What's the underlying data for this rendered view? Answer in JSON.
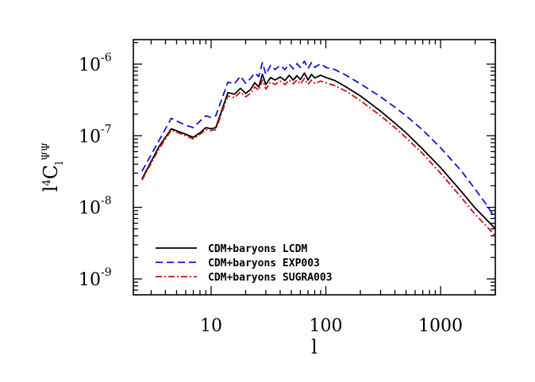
{
  "chart_data": {
    "type": "line",
    "xlabel": "l",
    "ylabel": "l⁴C_l^ΨΨ",
    "xscale": "log",
    "yscale": "log",
    "xlim": [
      2.1,
      3000
    ],
    "ylim": [
      6e-10,
      2.2e-06
    ],
    "x_ticks": [
      {
        "value": 10,
        "label": "10"
      },
      {
        "value": 100,
        "label": "100"
      },
      {
        "value": 1000,
        "label": "1000"
      }
    ],
    "y_ticks": [
      {
        "value": 1e-09,
        "base": "10",
        "exp": "-9"
      },
      {
        "value": 1e-08,
        "base": "10",
        "exp": "-8"
      },
      {
        "value": 1e-07,
        "base": "10",
        "exp": "-7"
      },
      {
        "value": 1e-06,
        "base": "10",
        "exp": "-6"
      }
    ],
    "grid": false,
    "legend_position": "bottom-left",
    "series": [
      {
        "name": "CDM+baryons LCDM",
        "color": "#000000",
        "dash": "solid",
        "points": [
          [
            2.5,
            2.5e-08
          ],
          [
            3.5,
            7e-08
          ],
          [
            4.5,
            1.25e-07
          ],
          [
            6,
            1.05e-07
          ],
          [
            7,
            9.5e-08
          ],
          [
            8,
            1.1e-07
          ],
          [
            9,
            1.3e-07
          ],
          [
            10,
            1.25e-07
          ],
          [
            11,
            1.3e-07
          ],
          [
            14,
            4e-07
          ],
          [
            16,
            3.8e-07
          ],
          [
            18,
            4.6e-07
          ],
          [
            20,
            3.9e-07
          ],
          [
            22,
            4.4e-07
          ],
          [
            24,
            5.5e-07
          ],
          [
            26,
            4.8e-07
          ],
          [
            28,
            7.2e-07
          ],
          [
            30,
            5.2e-07
          ],
          [
            33,
            6.5e-07
          ],
          [
            36,
            6e-07
          ],
          [
            40,
            6.6e-07
          ],
          [
            44,
            5.9e-07
          ],
          [
            48,
            7e-07
          ],
          [
            52,
            6e-07
          ],
          [
            56,
            6.9e-07
          ],
          [
            60,
            6.1e-07
          ],
          [
            65,
            7.5e-07
          ],
          [
            70,
            6e-07
          ],
          [
            75,
            7.2e-07
          ],
          [
            80,
            6.4e-07
          ],
          [
            90,
            7e-07
          ],
          [
            100,
            6.5e-07
          ],
          [
            120,
            5.9e-07
          ],
          [
            150,
            4.8e-07
          ],
          [
            200,
            3.6e-07
          ],
          [
            300,
            2.2e-07
          ],
          [
            400,
            1.5e-07
          ],
          [
            500,
            1.1e-07
          ],
          [
            700,
            6.5e-08
          ],
          [
            1000,
            3.6e-08
          ],
          [
            1500,
            1.7e-08
          ],
          [
            2000,
            9.8e-09
          ],
          [
            2500,
            6.8e-09
          ],
          [
            3000,
            5e-09
          ]
        ]
      },
      {
        "name": "CDM+baryons EXP003",
        "color": "#1010e0",
        "dash": "dashed",
        "points": [
          [
            2.5,
            3.2e-08
          ],
          [
            3.5,
            8.5e-08
          ],
          [
            4.5,
            1.75e-07
          ],
          [
            6,
            1.4e-07
          ],
          [
            7,
            1.3e-07
          ],
          [
            8,
            1.6e-07
          ],
          [
            9,
            1.9e-07
          ],
          [
            10,
            1.8e-07
          ],
          [
            11,
            1.9e-07
          ],
          [
            14,
            5.6e-07
          ],
          [
            16,
            5.3e-07
          ],
          [
            18,
            6.8e-07
          ],
          [
            20,
            5.4e-07
          ],
          [
            22,
            6.3e-07
          ],
          [
            24,
            7.5e-07
          ],
          [
            26,
            6.7e-07
          ],
          [
            28,
            1.05e-06
          ],
          [
            30,
            7.2e-07
          ],
          [
            33,
            9.6e-07
          ],
          [
            36,
            8.4e-07
          ],
          [
            40,
            9.6e-07
          ],
          [
            44,
            8.4e-07
          ],
          [
            48,
            1e-06
          ],
          [
            52,
            8.6e-07
          ],
          [
            56,
            1.02e-06
          ],
          [
            60,
            9e-07
          ],
          [
            65,
            1.1e-06
          ],
          [
            70,
            8.7e-07
          ],
          [
            75,
            1.05e-06
          ],
          [
            80,
            9e-07
          ],
          [
            90,
            1.02e-06
          ],
          [
            100,
            9e-07
          ],
          [
            120,
            8.4e-07
          ],
          [
            150,
            7e-07
          ],
          [
            200,
            5.3e-07
          ],
          [
            300,
            3.5e-07
          ],
          [
            400,
            2.5e-07
          ],
          [
            500,
            1.9e-07
          ],
          [
            700,
            1.2e-07
          ],
          [
            1000,
            6.8e-08
          ],
          [
            1500,
            3.3e-08
          ],
          [
            2000,
            1.8e-08
          ],
          [
            2500,
            1.1e-08
          ],
          [
            3000,
            7e-09
          ]
        ]
      },
      {
        "name": "CDM+baryons SUGRA003",
        "color": "#c81010",
        "dash": "dashdot",
        "points": [
          [
            2.5,
            2.4e-08
          ],
          [
            3.5,
            6.5e-08
          ],
          [
            4.5,
            1.2e-07
          ],
          [
            6,
            1e-07
          ],
          [
            7,
            9e-08
          ],
          [
            8,
            1.05e-07
          ],
          [
            9,
            1.22e-07
          ],
          [
            10,
            1.18e-07
          ],
          [
            11,
            1.22e-07
          ],
          [
            14,
            3.6e-07
          ],
          [
            16,
            3.4e-07
          ],
          [
            18,
            4.1e-07
          ],
          [
            20,
            3.5e-07
          ],
          [
            22,
            3.9e-07
          ],
          [
            24,
            4.8e-07
          ],
          [
            26,
            4.3e-07
          ],
          [
            28,
            6e-07
          ],
          [
            30,
            4.5e-07
          ],
          [
            33,
            5.6e-07
          ],
          [
            36,
            5.2e-07
          ],
          [
            40,
            5.8e-07
          ],
          [
            44,
            5.2e-07
          ],
          [
            48,
            6e-07
          ],
          [
            52,
            5.3e-07
          ],
          [
            56,
            6e-07
          ],
          [
            60,
            5.3e-07
          ],
          [
            65,
            6.3e-07
          ],
          [
            70,
            5.2e-07
          ],
          [
            75,
            6e-07
          ],
          [
            80,
            5.4e-07
          ],
          [
            90,
            5.8e-07
          ],
          [
            100,
            5.5e-07
          ],
          [
            120,
            5e-07
          ],
          [
            150,
            4.2e-07
          ],
          [
            200,
            3.1e-07
          ],
          [
            300,
            1.9e-07
          ],
          [
            400,
            1.3e-07
          ],
          [
            500,
            9.4e-08
          ],
          [
            700,
            5.6e-08
          ],
          [
            1000,
            3e-08
          ],
          [
            1500,
            1.4e-08
          ],
          [
            2000,
            8e-09
          ],
          [
            2500,
            5.5e-09
          ],
          [
            3000,
            4e-09
          ]
        ]
      }
    ]
  }
}
